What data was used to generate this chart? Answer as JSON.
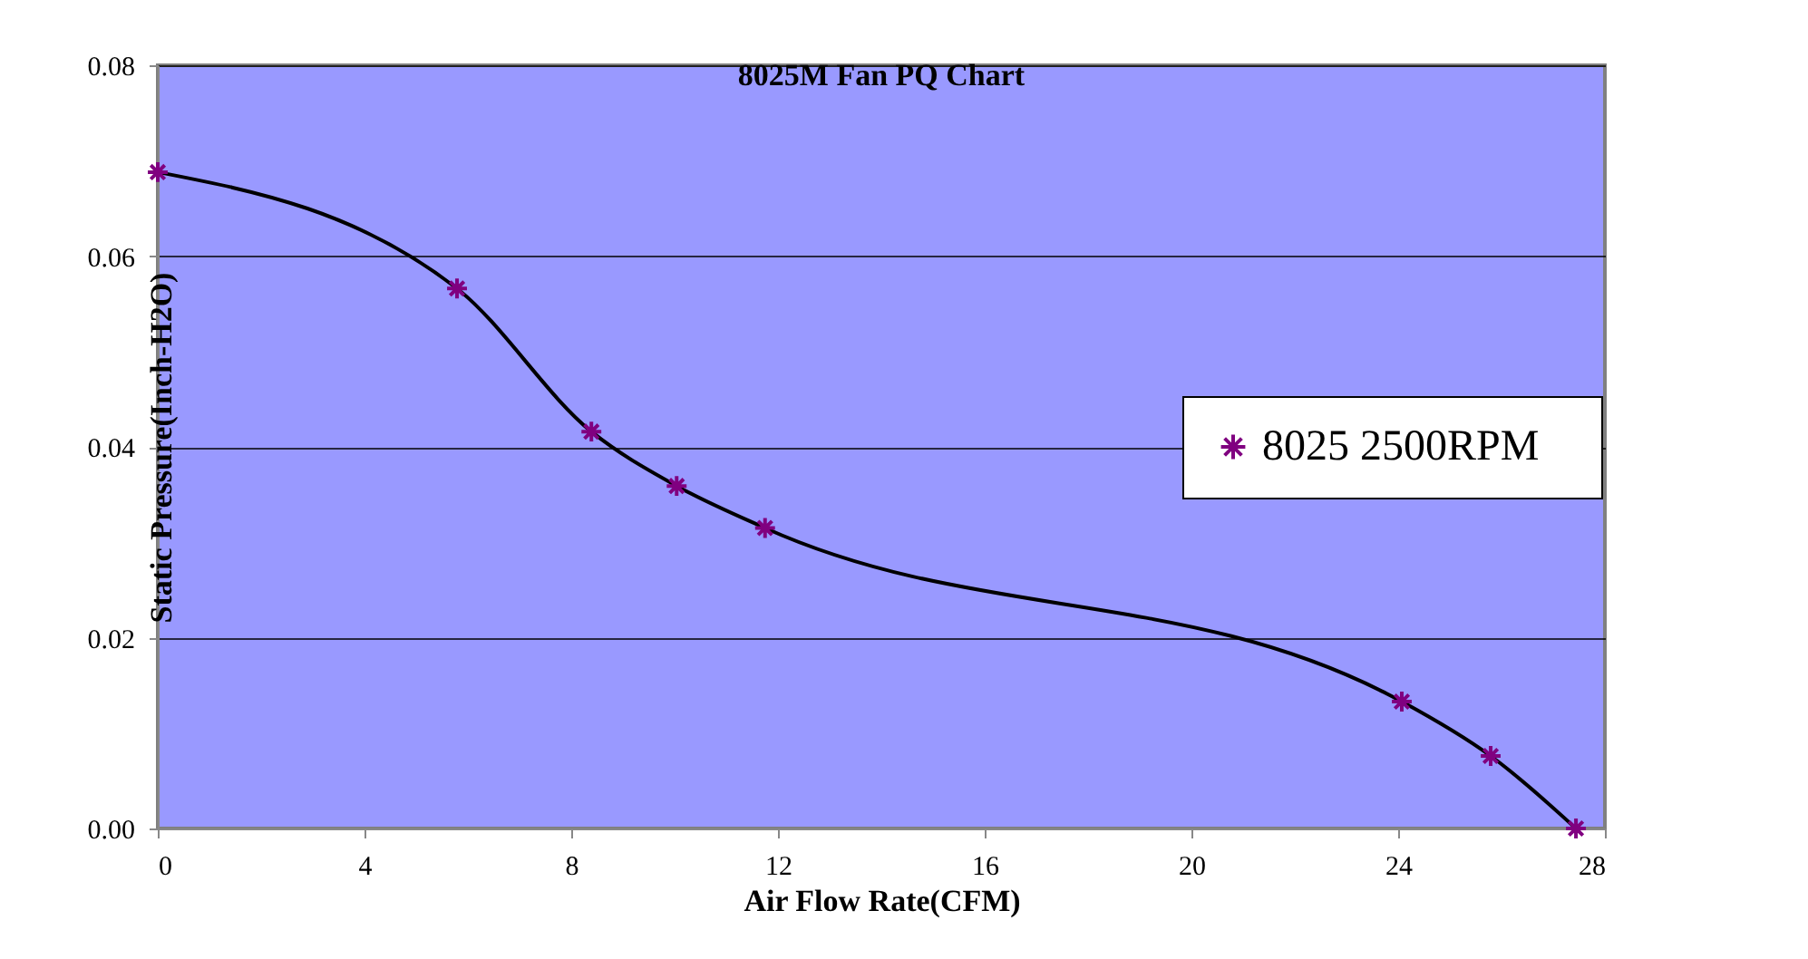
{
  "chart_data": {
    "type": "line",
    "title": "8025M  Fan PQ Chart",
    "xlabel": "Air Flow Rate(CFM)",
    "ylabel": "Static Pressure(Inch-H2O)",
    "series": [
      {
        "name": "8025    2500RPM",
        "color": "#800080",
        "x": [
          0,
          5.79,
          8.39,
          10.04,
          11.75,
          24.07,
          25.79,
          27.44
        ],
        "values": [
          0.0688,
          0.0566,
          0.0416,
          0.0359,
          0.0315,
          0.0133,
          0.0076,
          0.0
        ]
      }
    ],
    "xlim": [
      0,
      28
    ],
    "xticks": [
      0,
      4,
      8,
      12,
      16,
      20,
      24,
      28
    ],
    "ylim": [
      0,
      0.08
    ],
    "yticks": [
      {
        "value": 0,
        "label": "0.00"
      },
      0.02,
      0.04,
      0.06,
      0.08
    ],
    "grid": "y",
    "legend": "right",
    "marker": "cross",
    "line_style": "solid"
  }
}
